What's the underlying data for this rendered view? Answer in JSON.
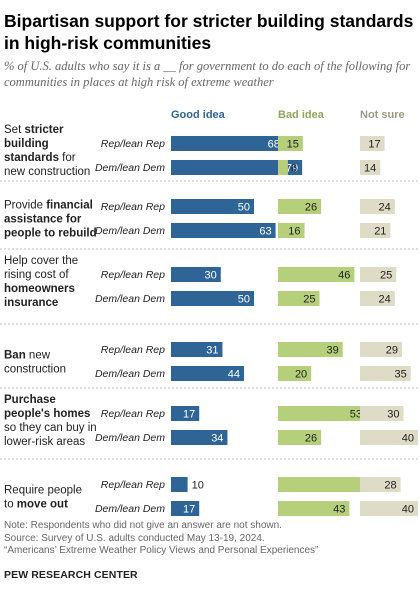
{
  "title": "Bipartisan support for stricter building standards in high-risk communities",
  "subtitle": "% of U.S. adults who say it is a __ for government to do each of the following for communities in places at high risk of extreme weather",
  "chart_data": {
    "type": "bar",
    "columns": [
      {
        "label": "Good idea",
        "color": "#2f6497"
      },
      {
        "label": "Bad idea",
        "color": "#b5cf7a"
      },
      {
        "label": "Not sure",
        "color": "#dedcc6"
      }
    ],
    "header_colors": {
      "good": "#2f6497",
      "bad": "#8fa65a",
      "notsure": "#9c9a80"
    },
    "groups": [
      "Rep/lean Rep",
      "Dem/lean Dem"
    ],
    "items": [
      {
        "label_lines": [
          [
            {
              "t": "Set ",
              "b": false
            },
            {
              "t": "stricter",
              "b": true
            }
          ],
          [
            {
              "t": "building",
              "b": true
            }
          ],
          [
            {
              "t": "standards",
              "b": true
            },
            {
              "t": " for",
              "b": false
            }
          ],
          [
            {
              "t": "new construction",
              "b": false
            }
          ]
        ],
        "rep": [
          68,
          15,
          17
        ],
        "dem": [
          79,
          6,
          14
        ]
      },
      {
        "label_lines": [
          [
            {
              "t": "Provide ",
              "b": false
            },
            {
              "t": "financial",
              "b": true
            }
          ],
          [
            {
              "t": "assistance for",
              "b": true
            }
          ],
          [
            {
              "t": "people to rebuild",
              "b": true
            }
          ]
        ],
        "rep": [
          50,
          26,
          24
        ],
        "dem": [
          63,
          16,
          21
        ]
      },
      {
        "label_lines": [
          [
            {
              "t": "Help cover the",
              "b": false
            }
          ],
          [
            {
              "t": "rising cost of",
              "b": false
            }
          ],
          [
            {
              "t": "homeowners",
              "b": true
            }
          ],
          [
            {
              "t": "insurance",
              "b": true
            }
          ]
        ],
        "rep": [
          30,
          46,
          25
        ],
        "dem": [
          50,
          25,
          24
        ]
      },
      {
        "label_lines": [
          [
            {
              "t": "Ban",
              "b": true
            },
            {
              "t": " new",
              "b": false
            }
          ],
          [
            {
              "t": "construction",
              "b": false
            }
          ]
        ],
        "rep": [
          31,
          39,
          29
        ],
        "dem": [
          44,
          20,
          35
        ]
      },
      {
        "label_lines": [
          [
            {
              "t": "Purchase",
              "b": true
            }
          ],
          [
            {
              "t": "people's homes",
              "b": true
            }
          ],
          [
            {
              "t": "so they can buy in",
              "b": false
            }
          ],
          [
            {
              "t": "lower-risk areas",
              "b": false
            }
          ]
        ],
        "rep": [
          17,
          53,
          30
        ],
        "dem": [
          34,
          26,
          40
        ]
      },
      {
        "label_lines": [
          [
            {
              "t": "Require people",
              "b": false
            }
          ],
          [
            {
              "t": "to ",
              "b": false
            },
            {
              "t": "move out",
              "b": true
            }
          ]
        ],
        "rep": [
          10,
          61,
          28
        ],
        "dem": [
          17,
          43,
          40
        ]
      }
    ]
  },
  "notes": [
    "Note: Respondents who did not give an answer are not shown.",
    "Source: Survey of U.S. adults conducted May 13-19, 2024.",
    "“Americans’ Extreme Weather Policy Views and Personal Experiences”"
  ],
  "source_org": "PEW RESEARCH CENTER"
}
